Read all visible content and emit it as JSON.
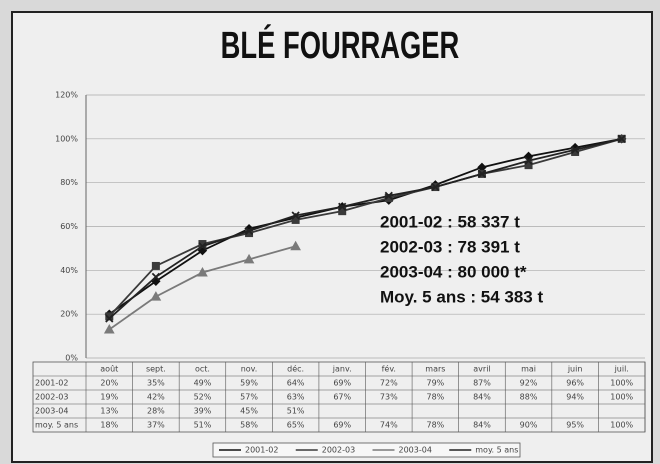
{
  "chart_data": {
    "type": "line",
    "title": "BLÉ FOURRAGER",
    "categories": [
      "août",
      "sept.",
      "oct.",
      "nov.",
      "déc.",
      "janv.",
      "fév.",
      "mars",
      "avril",
      "mai",
      "juin",
      "juil."
    ],
    "series": [
      {
        "name": "2001-02",
        "color": "#111111",
        "marker": "diamond",
        "values": [
          20,
          35,
          49,
          59,
          64,
          69,
          72,
          79,
          87,
          92,
          96,
          100
        ],
        "value_labels": [
          "20%",
          "35%",
          "49%",
          "59%",
          "64%",
          "69%",
          "72%",
          "79%",
          "87%",
          "92%",
          "96%",
          "100%"
        ]
      },
      {
        "name": "2002-03",
        "color": "#3a3a3a",
        "marker": "square",
        "values": [
          19,
          42,
          52,
          57,
          63,
          67,
          73,
          78,
          84,
          88,
          94,
          100
        ],
        "value_labels": [
          "19%",
          "42%",
          "52%",
          "57%",
          "63%",
          "67%",
          "73%",
          "78%",
          "84%",
          "88%",
          "94%",
          "100%"
        ]
      },
      {
        "name": "2003-04",
        "color": "#7a7a7a",
        "marker": "triangle",
        "values": [
          13,
          28,
          39,
          45,
          51,
          null,
          null,
          null,
          null,
          null,
          null,
          null
        ],
        "value_labels": [
          "13%",
          "28%",
          "39%",
          "45%",
          "51%",
          null,
          null,
          null,
          null,
          null,
          null,
          null
        ]
      },
      {
        "name": "moy. 5 ans",
        "color": "#222222",
        "marker": "cross",
        "values": [
          18,
          37,
          51,
          58,
          65,
          69,
          74,
          78,
          84,
          90,
          95,
          100
        ],
        "value_labels": [
          "18%",
          "37%",
          "51%",
          "58%",
          "65%",
          "69%",
          "74%",
          "78%",
          "84%",
          "90%",
          "95%",
          "100%"
        ]
      }
    ],
    "ylim": [
      0,
      120
    ],
    "yticks": [
      {
        "value": 0,
        "label": "0%"
      },
      {
        "value": 20,
        "label": "20%"
      },
      {
        "value": 40,
        "label": "40%"
      },
      {
        "value": 60,
        "label": "60%"
      },
      {
        "value": 80,
        "label": "80%"
      },
      {
        "value": 100,
        "label": "100%"
      },
      {
        "value": 120,
        "label": "120%"
      }
    ],
    "grid": true,
    "annotations": [
      "2001-02 : 58 337 t",
      "2002-03 : 78 391 t",
      "2003-04 : 80 000 t*",
      "Moy. 5 ans : 54 383 t"
    ]
  }
}
